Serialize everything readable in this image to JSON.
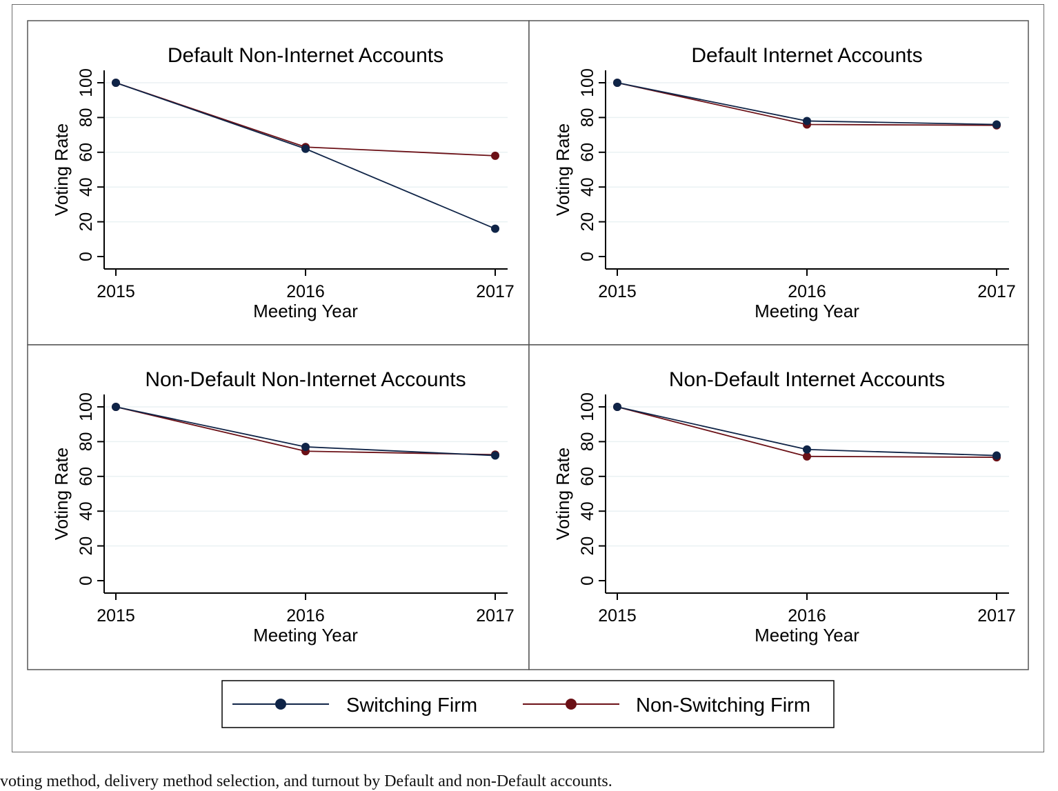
{
  "figure": {
    "caption": "voting method, delivery method selection, and turnout by Default and non-Default accounts."
  },
  "legend": {
    "items": [
      {
        "label": "Switching Firm",
        "color": "#0f2447"
      },
      {
        "label": "Non-Switching Firm",
        "color": "#6b1016"
      }
    ]
  },
  "chart_data": [
    {
      "type": "line",
      "title": "Default Non-Internet Accounts",
      "xlabel": "Meeting Year",
      "ylabel": "Voting Rate",
      "x": [
        "2015",
        "2016",
        "2017"
      ],
      "ylim": [
        0,
        100
      ],
      "yticks": [
        0,
        20,
        40,
        60,
        80,
        100
      ],
      "grid": true,
      "series": [
        {
          "name": "Switching Firm",
          "values": [
            100,
            62,
            16
          ]
        },
        {
          "name": "Non-Switching Firm",
          "values": [
            100,
            63,
            58
          ]
        }
      ]
    },
    {
      "type": "line",
      "title": "Default Internet Accounts",
      "xlabel": "Meeting Year",
      "ylabel": "Voting Rate",
      "x": [
        "2015",
        "2016",
        "2017"
      ],
      "ylim": [
        0,
        100
      ],
      "yticks": [
        0,
        20,
        40,
        60,
        80,
        100
      ],
      "grid": true,
      "series": [
        {
          "name": "Switching Firm",
          "values": [
            100,
            78,
            76
          ]
        },
        {
          "name": "Non-Switching Firm",
          "values": [
            100,
            76,
            75.5
          ]
        }
      ]
    },
    {
      "type": "line",
      "title": "Non-Default Non-Internet Accounts",
      "xlabel": "Meeting Year",
      "ylabel": "Voting Rate",
      "x": [
        "2015",
        "2016",
        "2017"
      ],
      "ylim": [
        0,
        100
      ],
      "yticks": [
        0,
        20,
        40,
        60,
        80,
        100
      ],
      "grid": true,
      "series": [
        {
          "name": "Switching Firm",
          "values": [
            100,
            77,
            72
          ]
        },
        {
          "name": "Non-Switching Firm",
          "values": [
            100,
            74.5,
            72.5
          ]
        }
      ]
    },
    {
      "type": "line",
      "title": "Non-Default Internet Accounts",
      "xlabel": "Meeting Year",
      "ylabel": "Voting Rate",
      "x": [
        "2015",
        "2016",
        "2017"
      ],
      "ylim": [
        0,
        100
      ],
      "yticks": [
        0,
        20,
        40,
        60,
        80,
        100
      ],
      "grid": true,
      "series": [
        {
          "name": "Switching Firm",
          "values": [
            100,
            75.5,
            72
          ]
        },
        {
          "name": "Non-Switching Firm",
          "values": [
            100,
            71.5,
            71
          ]
        }
      ]
    }
  ]
}
